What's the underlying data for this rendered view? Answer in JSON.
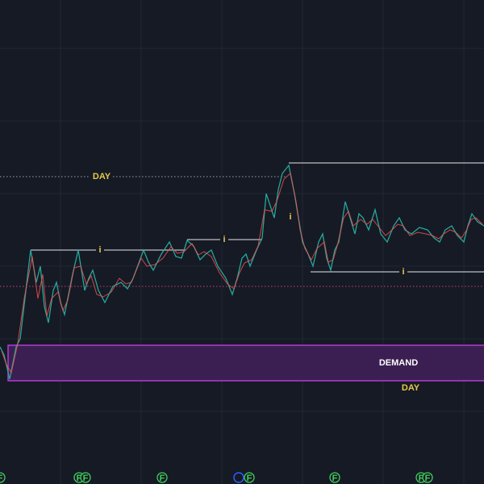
{
  "levels": {
    "day_level": "DAY",
    "info_marks": [
      "i",
      "i",
      "i",
      "i"
    ]
  },
  "zone": {
    "name": "DEMAND",
    "timeframe": "DAY"
  },
  "events": [
    "F",
    "F",
    "F",
    "F",
    "F",
    "F",
    "F",
    "F"
  ]
}
